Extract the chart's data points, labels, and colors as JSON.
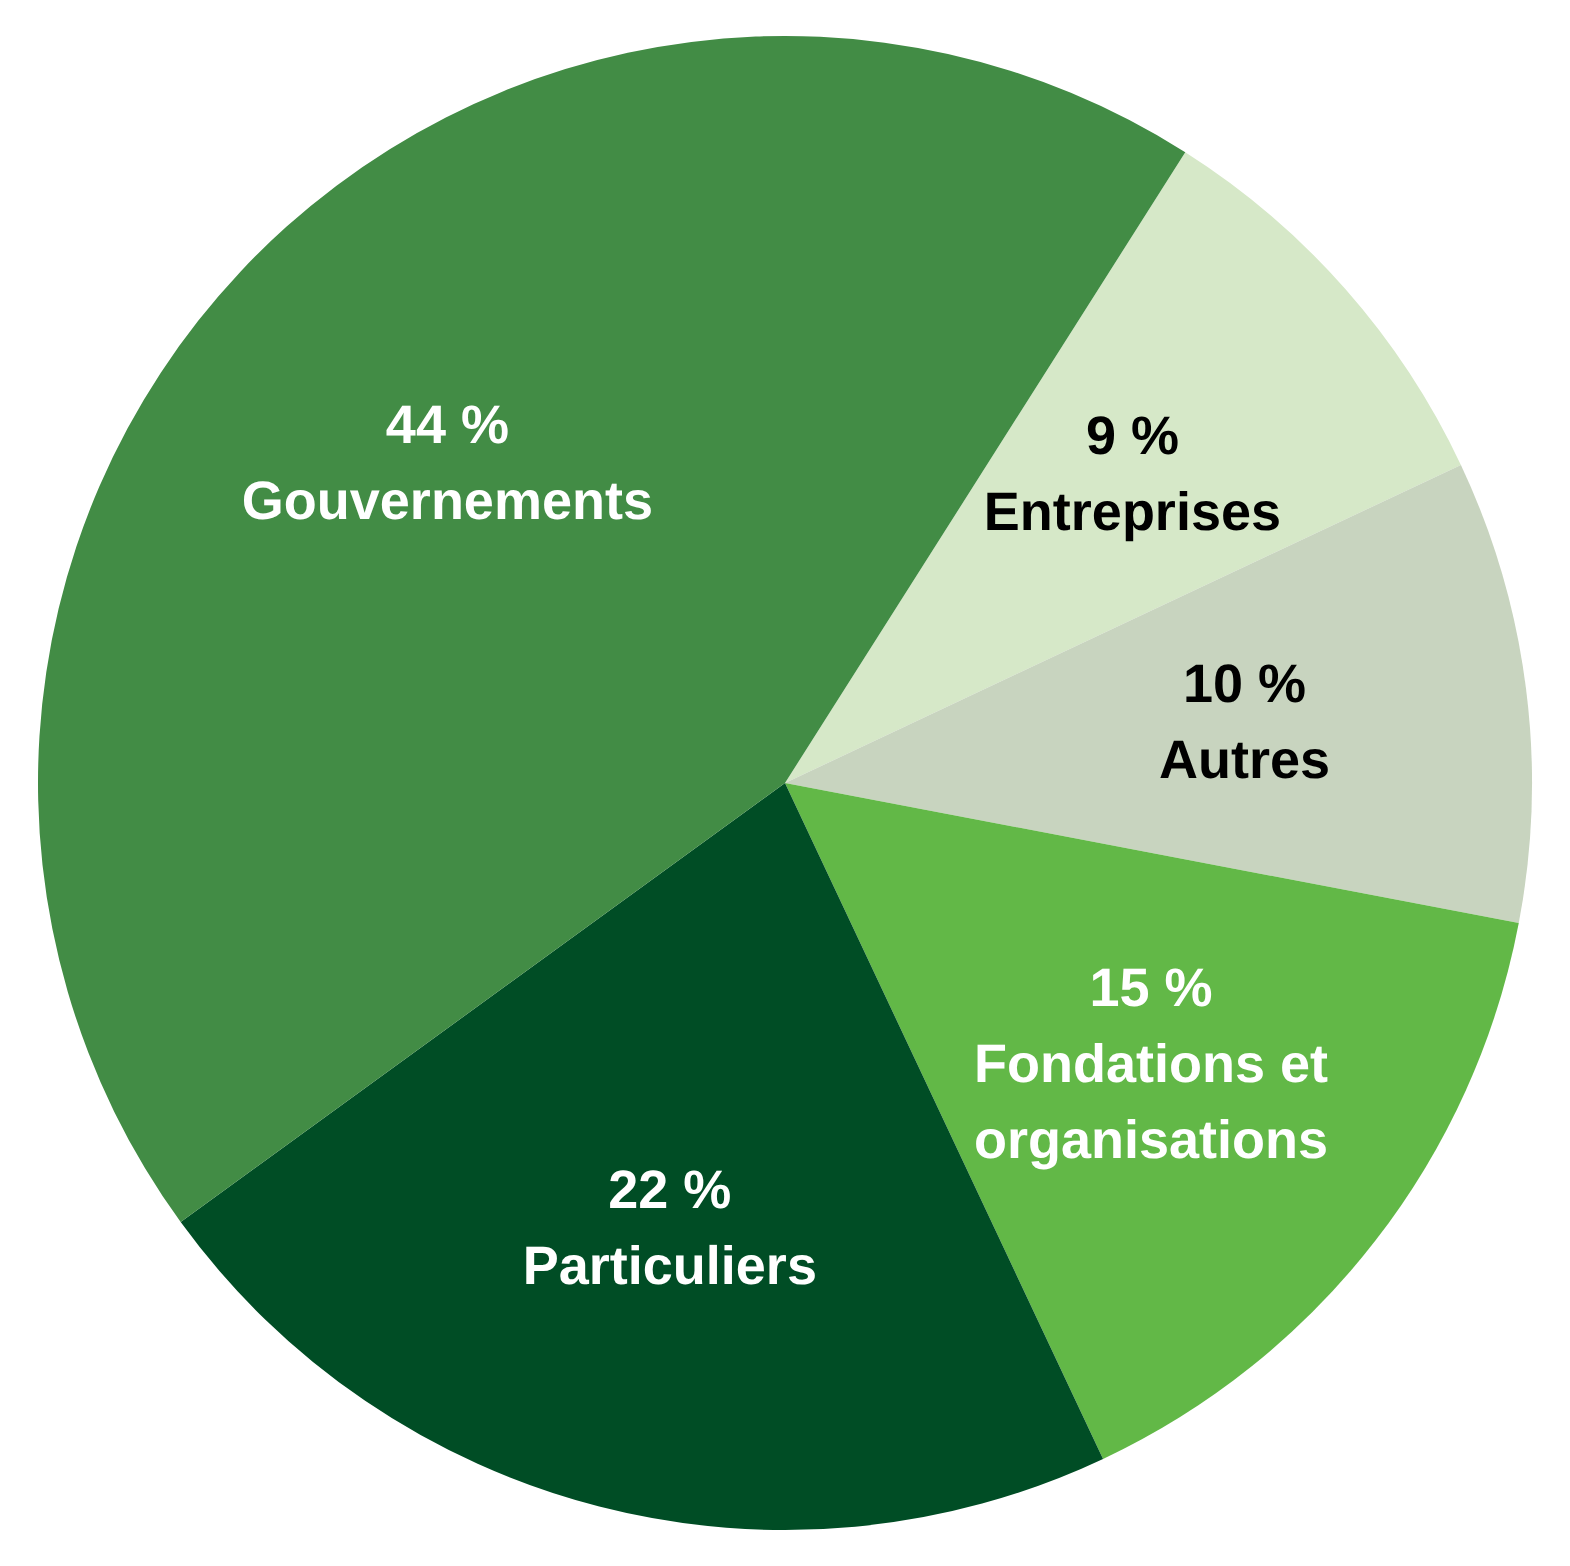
{
  "chart_data": {
    "type": "pie",
    "categories": [
      "Entreprises",
      "Autres",
      "Fondations et organisations",
      "Particuliers",
      "Gouvernements"
    ],
    "values": [
      9,
      10,
      15,
      22,
      44
    ],
    "colors": [
      "#d6e8c8",
      "#c8d4bf",
      "#62b847",
      "#004d25",
      "#428c45"
    ],
    "value_labels": [
      "9 %",
      "10 %",
      "15 %",
      "22 %",
      "44 %"
    ],
    "legend": false
  }
}
